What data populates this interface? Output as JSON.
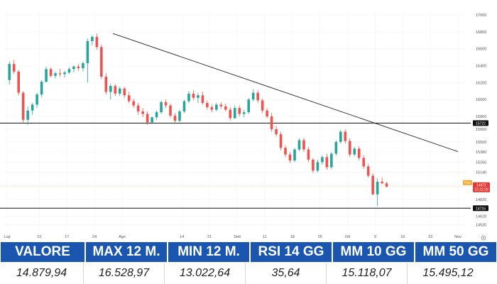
{
  "chart_data": {
    "type": "candlestick",
    "title": "",
    "xlabel": "",
    "ylabel": "",
    "ylim": [
      14450,
      17050
    ],
    "y_ticks": [
      17000,
      16800,
      16600,
      16400,
      16200,
      16000,
      15800,
      15650,
      15500,
      15380,
      15260,
      15140,
      14990,
      14820,
      14620,
      14520
    ],
    "y_tick_labels": [
      "17000",
      "16800",
      "16600",
      "16400",
      "16200",
      "16000",
      "15800",
      "15650",
      "15500",
      "15380",
      "15260",
      "15140",
      "14990",
      "14820",
      "14620",
      "14520"
    ],
    "x_tick_labels": [
      "Lug",
      "10",
      "17",
      "24",
      "Ago",
      "14",
      "21",
      "Sett",
      "11",
      "18",
      "25",
      "Ott",
      "9",
      "16",
      "23",
      "Nov"
    ],
    "x_tick_index": [
      0,
      7,
      13,
      19,
      25,
      38,
      44,
      50,
      56,
      62,
      68,
      74,
      80,
      86,
      92,
      98
    ],
    "bullish_color": "#26a69a",
    "bearish_color": "#ef5350",
    "grid": true,
    "horizontal_levels": [
      {
        "value": 15722,
        "label": "15722"
      },
      {
        "value": 14716,
        "label": "14716"
      }
    ],
    "trendline": {
      "from_index": 23,
      "from_value": 16780,
      "to_index": 98,
      "to_value": 15385
    },
    "last_price": {
      "value": 14972,
      "label": "14972",
      "time_label": "15:22:26",
      "tag": "Ftse"
    },
    "ohlc": [
      [
        16230,
        16450,
        16180,
        16420
      ],
      [
        16420,
        16470,
        16300,
        16330
      ],
      [
        16330,
        16350,
        16050,
        16080
      ],
      [
        16080,
        16100,
        15720,
        15760
      ],
      [
        15760,
        15920,
        15700,
        15870
      ],
      [
        15870,
        15960,
        15820,
        15940
      ],
      [
        15940,
        16080,
        15900,
        16060
      ],
      [
        16060,
        16230,
        16030,
        16210
      ],
      [
        16210,
        16390,
        16200,
        16360
      ],
      [
        16360,
        16380,
        16260,
        16280
      ],
      [
        16280,
        16330,
        16250,
        16310
      ],
      [
        16310,
        16360,
        16270,
        16300
      ],
      [
        16300,
        16340,
        16260,
        16320
      ],
      [
        16320,
        16380,
        16300,
        16360
      ],
      [
        16360,
        16400,
        16320,
        16390
      ],
      [
        16390,
        16420,
        16340,
        16370
      ],
      [
        16370,
        16450,
        16330,
        16430
      ],
      [
        16430,
        16720,
        16200,
        16690
      ],
      [
        16690,
        16760,
        16640,
        16740
      ],
      [
        16740,
        16780,
        16590,
        16620
      ],
      [
        16620,
        16650,
        16240,
        16270
      ],
      [
        16270,
        16310,
        16060,
        16090
      ],
      [
        16090,
        16190,
        16000,
        16160
      ],
      [
        16160,
        16180,
        16040,
        16070
      ],
      [
        16070,
        16150,
        16040,
        16130
      ],
      [
        16130,
        16150,
        16020,
        16050
      ],
      [
        16050,
        16090,
        15960,
        15980
      ],
      [
        15980,
        16010,
        15900,
        15930
      ],
      [
        15930,
        15960,
        15820,
        15860
      ],
      [
        15860,
        15900,
        15790,
        15830
      ],
      [
        15830,
        15860,
        15700,
        15730
      ],
      [
        15730,
        15800,
        15710,
        15790
      ],
      [
        15790,
        15870,
        15760,
        15850
      ],
      [
        15850,
        15990,
        15830,
        15970
      ],
      [
        15970,
        16000,
        15900,
        15930
      ],
      [
        15930,
        15950,
        15780,
        15810
      ],
      [
        15810,
        15840,
        15720,
        15750
      ],
      [
        15750,
        15880,
        15730,
        15860
      ],
      [
        15860,
        16000,
        15840,
        15980
      ],
      [
        15980,
        16100,
        15960,
        16070
      ],
      [
        16070,
        16110,
        15990,
        16020
      ],
      [
        16020,
        16080,
        15960,
        16050
      ],
      [
        16050,
        16090,
        15940,
        15960
      ],
      [
        15960,
        15990,
        15880,
        15910
      ],
      [
        15910,
        15940,
        15850,
        15880
      ],
      [
        15880,
        15960,
        15860,
        15940
      ],
      [
        15940,
        15970,
        15890,
        15920
      ],
      [
        15920,
        15950,
        15860,
        15880
      ],
      [
        15880,
        15910,
        15750,
        15780
      ],
      [
        15780,
        15930,
        15770,
        15900
      ],
      [
        15900,
        15930,
        15800,
        15830
      ],
      [
        15830,
        15880,
        15790,
        15850
      ],
      [
        15850,
        16020,
        15830,
        16000
      ],
      [
        16000,
        16120,
        15980,
        16080
      ],
      [
        16080,
        16110,
        15960,
        15990
      ],
      [
        15990,
        16010,
        15840,
        15870
      ],
      [
        15870,
        15900,
        15780,
        15800
      ],
      [
        15800,
        15840,
        15620,
        15650
      ],
      [
        15650,
        15690,
        15560,
        15590
      ],
      [
        15590,
        15620,
        15400,
        15430
      ],
      [
        15430,
        15460,
        15320,
        15350
      ],
      [
        15350,
        15380,
        15250,
        15280
      ],
      [
        15280,
        15430,
        15260,
        15410
      ],
      [
        15410,
        15540,
        15390,
        15520
      ],
      [
        15520,
        15550,
        15380,
        15410
      ],
      [
        15410,
        15440,
        15260,
        15290
      ],
      [
        15290,
        15310,
        15130,
        15160
      ],
      [
        15160,
        15290,
        15140,
        15260
      ],
      [
        15260,
        15340,
        15230,
        15320
      ],
      [
        15320,
        15360,
        15170,
        15200
      ],
      [
        15200,
        15380,
        15180,
        15360
      ],
      [
        15360,
        15520,
        15340,
        15500
      ],
      [
        15500,
        15640,
        15480,
        15620
      ],
      [
        15620,
        15650,
        15480,
        15510
      ],
      [
        15510,
        15540,
        15320,
        15350
      ],
      [
        15350,
        15440,
        15330,
        15420
      ],
      [
        15420,
        15450,
        15280,
        15310
      ],
      [
        15310,
        15340,
        15180,
        15210
      ],
      [
        15210,
        15240,
        15080,
        15100
      ],
      [
        15100,
        15130,
        14870,
        14880
      ],
      [
        14880,
        15070,
        14740,
        15030
      ],
      [
        15030,
        15080,
        15000,
        15010
      ],
      [
        15010,
        15030,
        14960,
        14972
      ]
    ]
  },
  "stats": {
    "headers": [
      "VALORE",
      "MAX 12 M.",
      "MIN 12 M.",
      "RSI 14 GG",
      "MM 10 GG",
      "MM 50 GG"
    ],
    "values": [
      "14.879,94",
      "16.528,97",
      "13.022,64",
      "35,64",
      "15.118,07",
      "15.495,12"
    ]
  }
}
